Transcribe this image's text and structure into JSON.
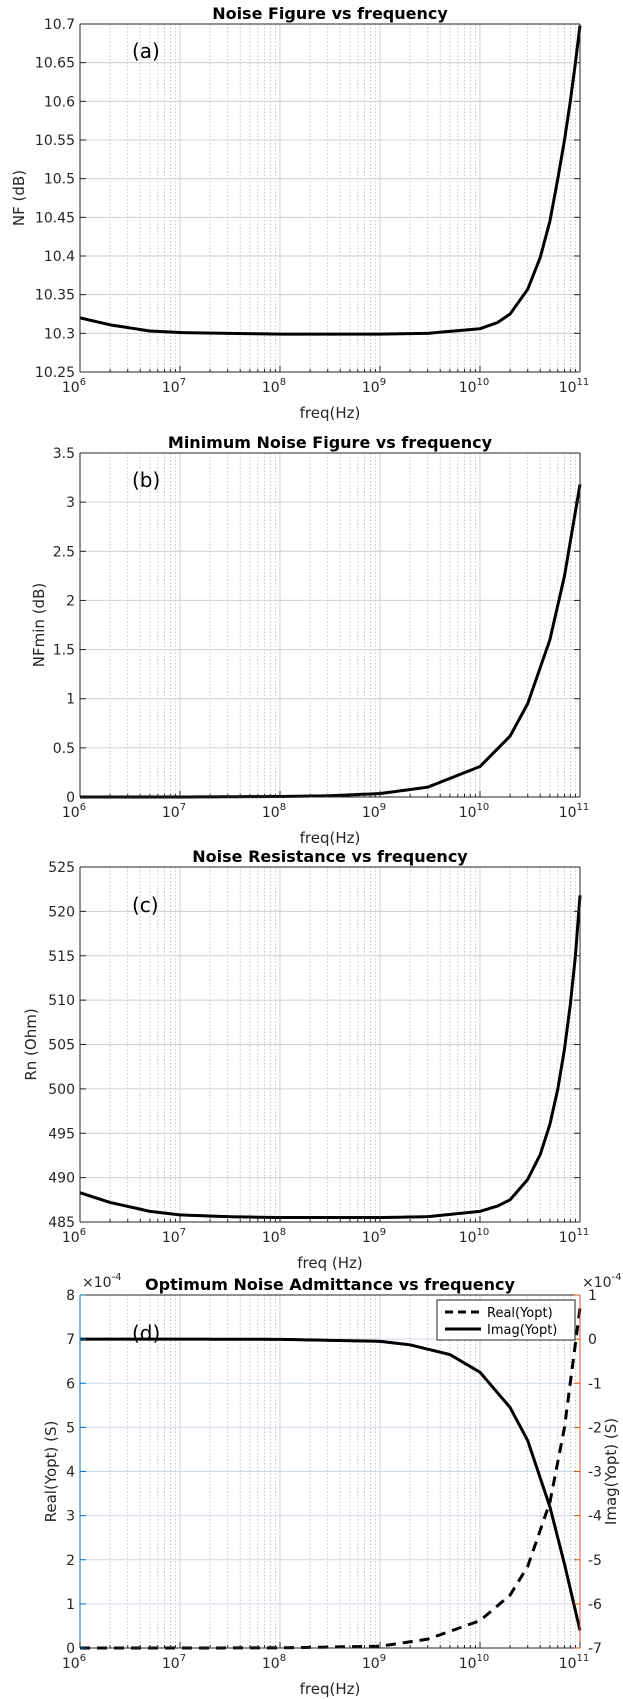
{
  "chart_data": [
    {
      "type": "line",
      "title": "Noise Figure vs frequency",
      "panel_label": "(a)",
      "xlabel": "freq(Hz)",
      "ylabel": "NF (dB)",
      "xscale": "log",
      "xlim": [
        1000000.0,
        100000000000.0
      ],
      "ylim": [
        10.25,
        10.7
      ],
      "yticks": [
        "10.25",
        "10.3",
        "10.35",
        "10.4",
        "10.45",
        "10.5",
        "10.55",
        "10.6",
        "10.65",
        "10.7"
      ],
      "xticks": [
        {
          "base": "10",
          "exp": "6"
        },
        {
          "base": "10",
          "exp": "7"
        },
        {
          "base": "10",
          "exp": "8"
        },
        {
          "base": "10",
          "exp": "9"
        },
        {
          "base": "10",
          "exp": "10"
        },
        {
          "base": "10",
          "exp": "11"
        }
      ],
      "grid": true,
      "series": [
        {
          "style": "solid",
          "color": "#000000",
          "x": [
            1000000.0,
            2000000.0,
            5000000.0,
            10000000.0,
            30000000.0,
            100000000.0,
            1000000000.0,
            3000000000.0,
            10000000000.0,
            15000000000.0,
            20000000000.0,
            30000000000.0,
            40000000000.0,
            50000000000.0,
            60000000000.0,
            70000000000.0,
            80000000000.0,
            90000000000.0,
            100000000000.0
          ],
          "y": [
            10.32,
            10.311,
            10.303,
            10.301,
            10.3,
            10.299,
            10.299,
            10.3,
            10.306,
            10.314,
            10.325,
            10.357,
            10.398,
            10.445,
            10.5,
            10.55,
            10.6,
            10.65,
            10.698
          ]
        }
      ]
    },
    {
      "type": "line",
      "title": "Minimum Noise Figure vs frequency",
      "panel_label": "(b)",
      "xlabel": "freq(Hz)",
      "ylabel": "NFmin (dB)",
      "xscale": "log",
      "xlim": [
        1000000.0,
        100000000000.0
      ],
      "ylim": [
        0,
        3.5
      ],
      "yticks": [
        "0",
        "0.5",
        "1",
        "1.5",
        "2",
        "2.5",
        "3",
        "3.5"
      ],
      "xticks": [
        {
          "base": "10",
          "exp": "6"
        },
        {
          "base": "10",
          "exp": "7"
        },
        {
          "base": "10",
          "exp": "8"
        },
        {
          "base": "10",
          "exp": "9"
        },
        {
          "base": "10",
          "exp": "10"
        },
        {
          "base": "10",
          "exp": "11"
        }
      ],
      "grid": true,
      "series": [
        {
          "style": "solid",
          "color": "#000000",
          "x": [
            1000000.0,
            10000000.0,
            100000000.0,
            300000000.0,
            1000000000.0,
            3000000000.0,
            10000000000.0,
            20000000000.0,
            30000000000.0,
            50000000000.0,
            70000000000.0,
            100000000000.0
          ],
          "y": [
            0.0,
            0.0,
            0.005,
            0.012,
            0.035,
            0.1,
            0.31,
            0.62,
            0.95,
            1.6,
            2.25,
            3.18
          ]
        }
      ]
    },
    {
      "type": "line",
      "title": "Noise Resistance vs frequency",
      "panel_label": "(c)",
      "xlabel": "freq (Hz)",
      "ylabel": "Rn (Ohm)",
      "xscale": "log",
      "xlim": [
        1000000.0,
        100000000000.0
      ],
      "ylim": [
        485,
        525
      ],
      "yticks": [
        "485",
        "490",
        "495",
        "500",
        "505",
        "510",
        "515",
        "520",
        "525"
      ],
      "xticks": [
        {
          "base": "10",
          "exp": "6"
        },
        {
          "base": "10",
          "exp": "7"
        },
        {
          "base": "10",
          "exp": "8"
        },
        {
          "base": "10",
          "exp": "9"
        },
        {
          "base": "10",
          "exp": "10"
        },
        {
          "base": "10",
          "exp": "11"
        }
      ],
      "grid": true,
      "series": [
        {
          "style": "solid",
          "color": "#000000",
          "x": [
            1000000.0,
            2000000.0,
            5000000.0,
            10000000.0,
            30000000.0,
            100000000.0,
            1000000000.0,
            3000000000.0,
            10000000000.0,
            15000000000.0,
            20000000000.0,
            30000000000.0,
            40000000000.0,
            50000000000.0,
            60000000000.0,
            70000000000.0,
            80000000000.0,
            90000000000.0,
            100000000000.0
          ],
          "y": [
            488.3,
            487.2,
            486.2,
            485.8,
            485.6,
            485.5,
            485.5,
            485.6,
            486.2,
            486.8,
            487.5,
            489.8,
            492.6,
            496.0,
            500.0,
            504.5,
            509.5,
            515.0,
            521.8
          ]
        }
      ]
    },
    {
      "type": "line",
      "title": "Optimum Noise Admittance vs frequency",
      "panel_label": "(d)",
      "xlabel": "freq(Hz)",
      "ylabel": "Real(Yopt) (S)",
      "ylabel_right": "Imag(Yopt) (S)",
      "xscale": "log",
      "xlim": [
        1000000.0,
        100000000000.0
      ],
      "ylim": [
        0,
        8
      ],
      "ylim_right": [
        -7,
        1
      ],
      "yticks": [
        "0",
        "1",
        "2",
        "3",
        "4",
        "5",
        "6",
        "7",
        "8"
      ],
      "yticks_right": [
        "-7",
        "-6",
        "-5",
        "-4",
        "-3",
        "-2",
        "-1",
        "0",
        "1"
      ],
      "y_multiplier": {
        "base": "×10",
        "exp": "-4"
      },
      "y_multiplier_right": {
        "base": "×10",
        "exp": "-4"
      },
      "left_axis_color": "#0072BD",
      "right_axis_color": "#D95319",
      "xticks": [
        {
          "base": "10",
          "exp": "6"
        },
        {
          "base": "10",
          "exp": "7"
        },
        {
          "base": "10",
          "exp": "8"
        },
        {
          "base": "10",
          "exp": "9"
        },
        {
          "base": "10",
          "exp": "10"
        },
        {
          "base": "10",
          "exp": "11"
        }
      ],
      "grid": true,
      "legend_position": "top-right",
      "series": [
        {
          "name": "Real(Yopt)",
          "axis": "left",
          "style": "dashed",
          "color": "#000000",
          "x": [
            1000000.0,
            10000000.0,
            100000000.0,
            1000000000.0,
            3000000000.0,
            10000000000.0,
            20000000000.0,
            30000000000.0,
            50000000000.0,
            70000000000.0,
            100000000000.0
          ],
          "y": [
            0.0,
            0.0,
            0.003,
            0.04,
            0.2,
            0.62,
            1.2,
            1.85,
            3.3,
            5.0,
            7.7
          ]
        },
        {
          "name": "Imag(Yopt)",
          "axis": "right",
          "style": "solid",
          "color": "#000000",
          "x": [
            1000000.0,
            10000000.0,
            100000000.0,
            1000000000.0,
            2000000000.0,
            5000000000.0,
            10000000000.0,
            20000000000.0,
            30000000000.0,
            50000000000.0,
            70000000000.0,
            100000000000.0
          ],
          "y": [
            0.0,
            0.0,
            -0.005,
            -0.05,
            -0.13,
            -0.35,
            -0.75,
            -1.55,
            -2.3,
            -3.8,
            -5.1,
            -6.6
          ]
        }
      ]
    }
  ]
}
